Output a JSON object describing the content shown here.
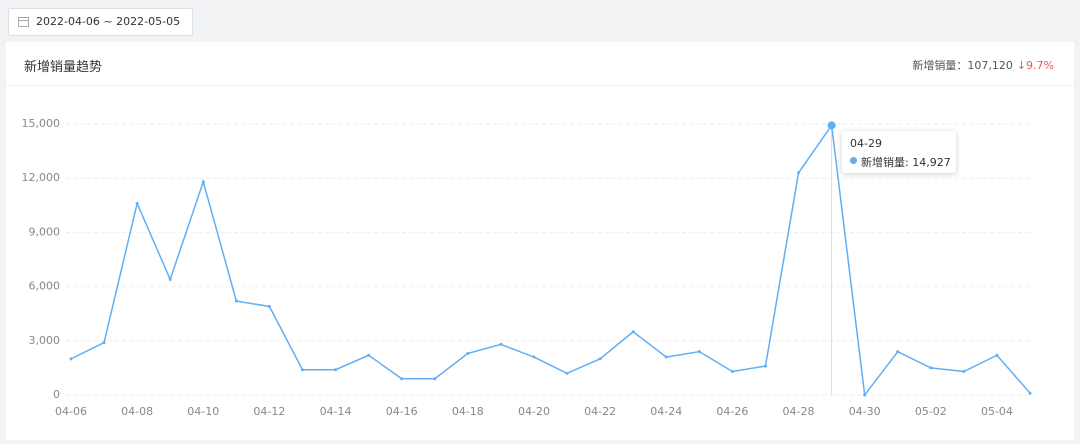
{
  "date_range": "2022-04-06 ~ 2022-05-05",
  "summary": {
    "label": "新增销量：",
    "value": "107,120",
    "change": "9.7%"
  },
  "tooltip": {
    "title": "04-29",
    "text": "新增销量: 14,927"
  },
  "chart_data": {
    "type": "line",
    "title": "新增销量趋势",
    "categories": [
      "04-06",
      null,
      "04-08",
      null,
      "04-10",
      null,
      "04-12",
      null,
      "04-14",
      null,
      "04-16",
      null,
      "04-18",
      null,
      "04-20",
      null,
      "04-22",
      null,
      "04-24",
      null,
      "04-26",
      null,
      "04-28",
      null,
      "04-30",
      null,
      "05-02",
      null,
      "05-04",
      null
    ],
    "series": [
      {
        "name": "新增销量",
        "color": "#63aef2",
        "values": [
          2000,
          2900,
          10600,
          6400,
          11800,
          5200,
          4900,
          1400,
          1400,
          2200,
          900,
          900,
          2300,
          2800,
          2100,
          1200,
          2000,
          3500,
          2100,
          2400,
          1300,
          1600,
          12300,
          14927,
          0,
          2400,
          1500,
          1300,
          2200,
          100
        ]
      }
    ],
    "ylim": [
      0,
      15000
    ],
    "yticks": [
      0,
      {
        "value": 3000,
        "label": "3,000"
      },
      {
        "value": 6000,
        "label": "6,000"
      },
      {
        "value": 9000,
        "label": "9,000"
      },
      {
        "value": 12000,
        "label": "12,000"
      },
      {
        "value": 15000,
        "label": "15,000"
      }
    ],
    "grid": true,
    "highlight_index": 23
  }
}
